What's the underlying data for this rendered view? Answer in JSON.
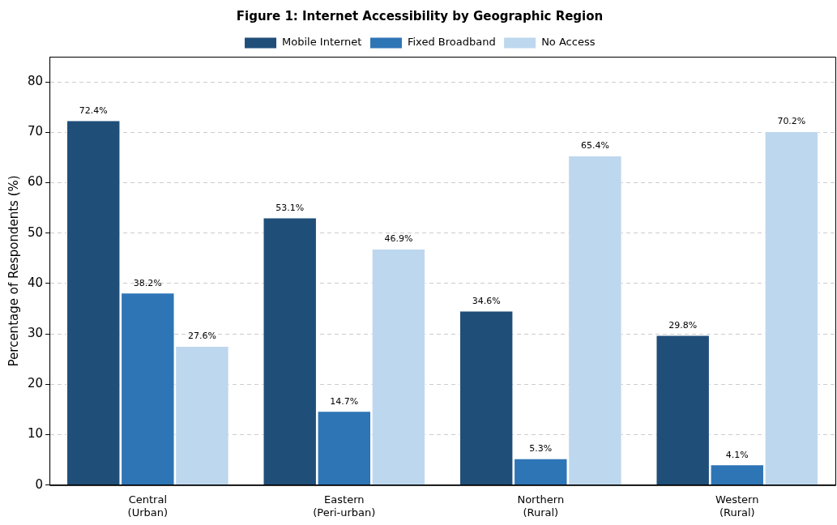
{
  "chart_data": {
    "type": "bar",
    "title": "Figure 1: Internet Accessibility by Geographic Region",
    "ylabel": "Percentage of Respondents (%)",
    "categories": [
      "Central\n(Urban)",
      "Eastern\n(Peri-urban)",
      "Northern\n(Rural)",
      "Western\n(Rural)"
    ],
    "series": [
      {
        "name": "Mobile Internet",
        "color": "#1f4e79",
        "values": [
          72.4,
          53.1,
          34.6,
          29.8
        ],
        "value_labels": [
          "72.4%",
          "53.1%",
          "34.6%",
          "29.8%"
        ]
      },
      {
        "name": "Fixed Broadband",
        "color": "#2e75b6",
        "values": [
          38.2,
          14.7,
          5.3,
          4.1
        ],
        "value_labels": [
          "38.2%",
          "14.7%",
          "5.3%",
          "4.1%"
        ]
      },
      {
        "name": "No Access",
        "color": "#bdd7ee",
        "values": [
          27.6,
          46.9,
          65.4,
          70.2
        ],
        "value_labels": [
          "27.6%",
          "46.9%",
          "65.4%",
          "70.2%"
        ]
      }
    ],
    "ylim": [
      0,
      85
    ],
    "yticks": [
      0,
      10,
      20,
      30,
      40,
      50,
      60,
      70,
      80
    ],
    "grid": "y",
    "legend": "top"
  }
}
